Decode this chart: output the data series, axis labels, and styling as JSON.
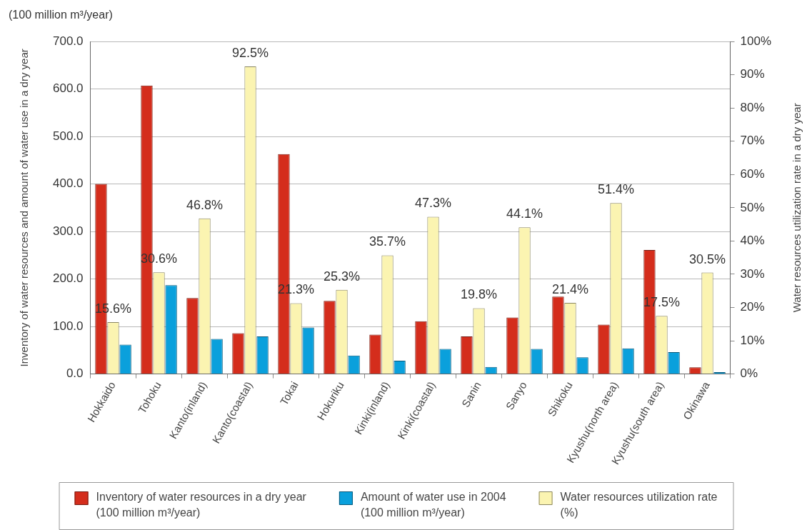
{
  "chart_data": {
    "type": "bar",
    "annotations": [
      "(100 million m³/year)"
    ],
    "ylabel": "Inventory of water resources and amount of water use in a dry year",
    "y2label": "Water resources utilization rate in a dry year",
    "categories": [
      "Hokkaido",
      "Tohoku",
      "Kanto(inland)",
      "Kanto(coastal)",
      "Tokai",
      "Hokuriku",
      "Kinki(inland)",
      "Kinki(coastal)",
      "Sanin",
      "Sanyo",
      "Shikoku",
      "Kyushu(north area)",
      "Kyushu(south area)",
      "Okinawa"
    ],
    "series": [
      {
        "name": "Inventory of water resources in a dry year\n(100 million m³/year)",
        "color": "#d42d1c",
        "values": [
          400,
          607,
          160,
          86,
          463,
          154,
          83,
          111,
          79,
          119,
          163,
          104,
          261,
          14
        ]
      },
      {
        "name": "Amount of water use in 2004\n(100 million m³/year)",
        "color": "#0aa0dc",
        "values": [
          62,
          187,
          74,
          79,
          98,
          39,
          28,
          53,
          15,
          53,
          35,
          54,
          46,
          4
        ]
      },
      {
        "name": "Water resources utilization rate\n(%)",
        "color": "#fbf4b1",
        "axis": "y2",
        "values": [
          15.6,
          30.6,
          46.8,
          92.5,
          21.3,
          25.3,
          35.7,
          47.3,
          19.8,
          44.1,
          21.4,
          51.4,
          17.5,
          30.5
        ],
        "value_labels": [
          "15.6%",
          "30.6%",
          "46.8%",
          "92.5%",
          "21.3%",
          "25.3%",
          "35.7%",
          "47.3%",
          "19.8%",
          "44.1%",
          "21.4%",
          "51.4%",
          "17.5%",
          "30.5%"
        ]
      }
    ],
    "ylim": [
      0,
      700
    ],
    "yticks": [
      {
        "value": 0,
        "label": "0.0"
      },
      {
        "value": 100,
        "label": "100.0"
      },
      {
        "value": 200,
        "label": "200.0"
      },
      {
        "value": 300,
        "label": "300.0"
      },
      {
        "value": 400,
        "label": "400.0"
      },
      {
        "value": 500,
        "label": "500.0"
      },
      {
        "value": 600,
        "label": "600.0"
      },
      {
        "value": 700,
        "label": "700.0"
      }
    ],
    "y2lim": [
      0,
      100
    ],
    "y2ticks": [
      {
        "value": 0,
        "label": "0%"
      },
      {
        "value": 10,
        "label": "10%"
      },
      {
        "value": 20,
        "label": "20%"
      },
      {
        "value": 30,
        "label": "30%"
      },
      {
        "value": 40,
        "label": "40%"
      },
      {
        "value": 50,
        "label": "50%"
      },
      {
        "value": 60,
        "label": "60%"
      },
      {
        "value": 70,
        "label": "70%"
      },
      {
        "value": 80,
        "label": "80%"
      },
      {
        "value": 90,
        "label": "90%"
      },
      {
        "value": 100,
        "label": "100%"
      }
    ],
    "grid": "y",
    "legend": "bottom"
  }
}
